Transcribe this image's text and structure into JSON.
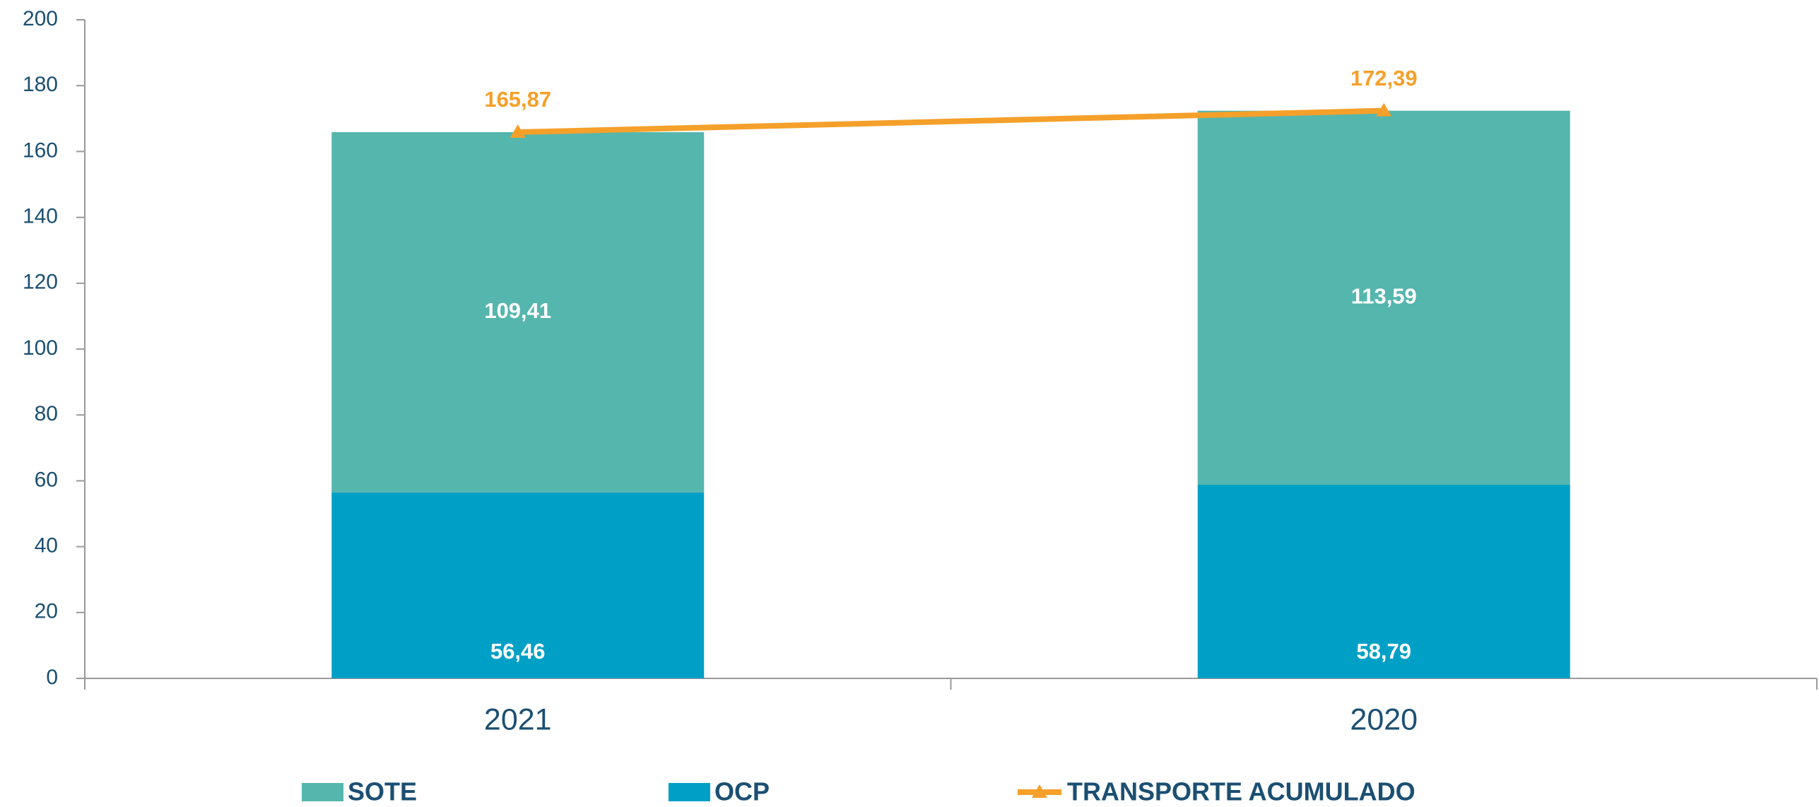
{
  "chart_data": {
    "type": "bar",
    "stacked": true,
    "categories": [
      "2021",
      "2020"
    ],
    "series": [
      {
        "name": "OCP",
        "type": "bar",
        "color": "#00a0c6",
        "values": [
          56.46,
          58.79
        ],
        "value_labels": [
          "56,46",
          "58,79"
        ]
      },
      {
        "name": "SOTE",
        "type": "bar",
        "color": "#55b6ad",
        "values": [
          109.41,
          113.59
        ],
        "value_labels": [
          "109,41",
          "113,59"
        ]
      },
      {
        "name": "TRANSPORTE ACUMULADO",
        "type": "line",
        "color": "#f5a02a",
        "values": [
          165.87,
          172.39
        ],
        "value_labels": [
          "165,87",
          "172,39"
        ]
      }
    ],
    "legend_order": [
      "SOTE",
      "OCP",
      "TRANSPORTE ACUMULADO"
    ],
    "ylim": [
      0,
      200
    ],
    "yticks": [
      0,
      20,
      40,
      60,
      80,
      100,
      120,
      140,
      160,
      180,
      200
    ],
    "grid": false
  }
}
